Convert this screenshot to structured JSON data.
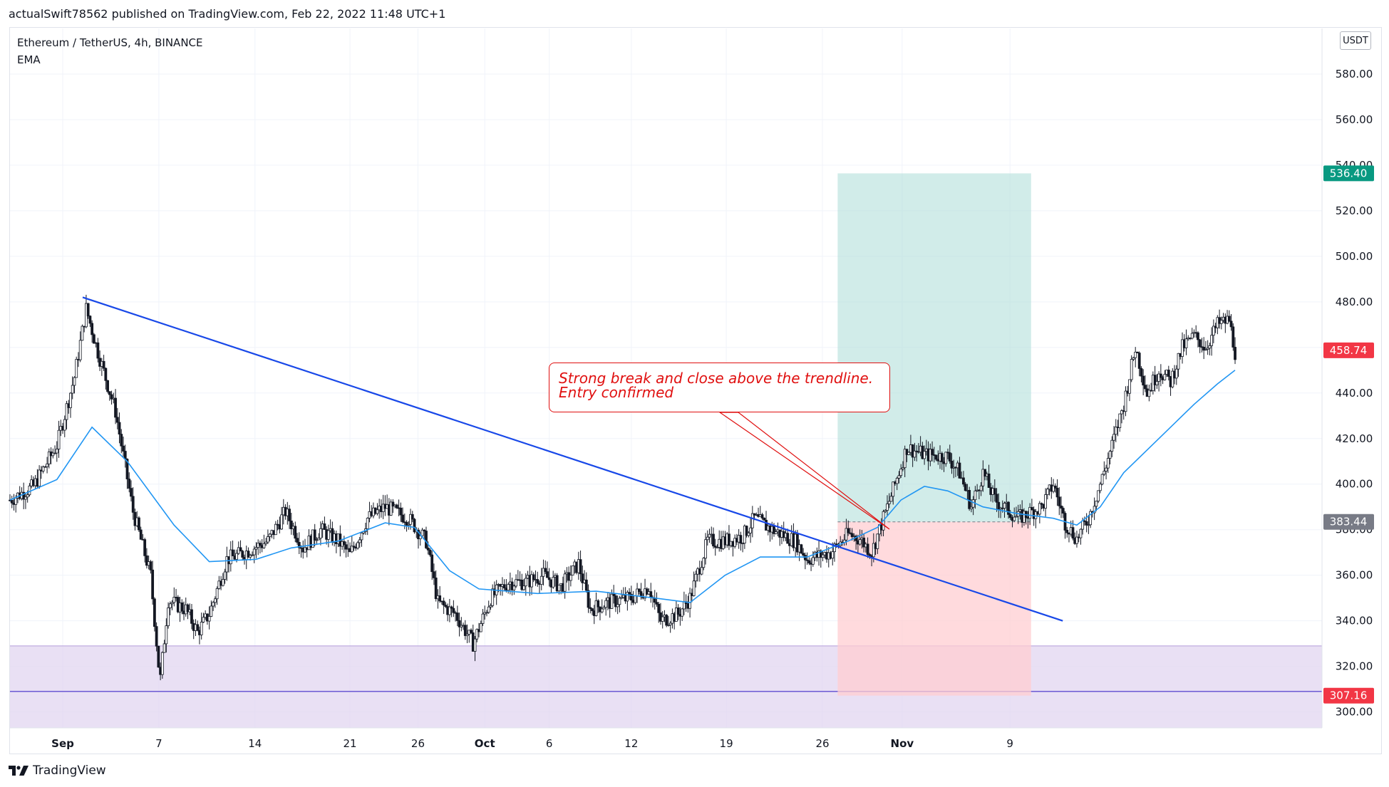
{
  "header": {
    "published_by": "actualSwift78562 published on TradingView.com, Feb 22, 2022 11:48 UTC+1"
  },
  "legend": {
    "symbol": "Ethereum / TetherUS, 4h, BINANCE",
    "indicator": "EMA"
  },
  "currency_button": "USDT",
  "footer": {
    "brand": "TradingView",
    "logo_icon": "tradingview-logo-icon"
  },
  "annotation": {
    "line1": "Strong break and close above the trendline.",
    "line2": "Entry confirmed"
  },
  "colors": {
    "up_candle": "#ffffff",
    "down_candle": "#131722",
    "ema": "#2196f3",
    "trendline": "#1848e8",
    "profit_zone": "#b2dfdb",
    "loss_zone": "#ffcdd2",
    "support_zone": "#e1d5f0",
    "target_label": "#089981",
    "stop_label": "#f23645",
    "entry_label": "#787b86",
    "current_label": "#f23645",
    "annotation": "#e01010"
  },
  "chart_data": {
    "type": "candlestick",
    "symbol": "Ethereum / TetherUS",
    "interval": "4h",
    "exchange": "BINANCE",
    "y_axis": {
      "ticks": [
        "300.00",
        "320.00",
        "340.00",
        "360.00",
        "380.00",
        "400.00",
        "420.00",
        "440.00",
        "460.00",
        "480.00",
        "500.00",
        "520.00",
        "540.00",
        "560.00",
        "580.00"
      ],
      "range": [
        293,
        600
      ],
      "unit": "USDT"
    },
    "x_axis": {
      "ticks": [
        {
          "label": "Sep",
          "bold": true
        },
        {
          "label": "7",
          "bold": false
        },
        {
          "label": "14",
          "bold": false
        },
        {
          "label": "21",
          "bold": false
        },
        {
          "label": "26",
          "bold": false
        },
        {
          "label": "Oct",
          "bold": true
        },
        {
          "label": "6",
          "bold": false
        },
        {
          "label": "12",
          "bold": false
        },
        {
          "label": "19",
          "bold": false
        },
        {
          "label": "26",
          "bold": false
        },
        {
          "label": "Nov",
          "bold": true
        },
        {
          "label": "9",
          "bold": false
        }
      ]
    },
    "price_labels": [
      {
        "name": "target",
        "value": "536.40"
      },
      {
        "name": "current",
        "value": "458.74"
      },
      {
        "name": "entry",
        "value": "383.44"
      },
      {
        "name": "stop",
        "value": "307.16"
      }
    ],
    "position": {
      "entry": 383.44,
      "target": 536.4,
      "stop": 307.16
    },
    "support_zone": {
      "low": 293,
      "high": 329,
      "line": 309
    },
    "ohlc_path": [
      {
        "d": 0,
        "p": 393
      },
      {
        "d": 2,
        "p": 399
      },
      {
        "d": 4,
        "p": 417
      },
      {
        "d": 5.5,
        "p": 447
      },
      {
        "d": 6.5,
        "p": 477
      },
      {
        "d": 7.5,
        "p": 458
      },
      {
        "d": 9,
        "p": 432
      },
      {
        "d": 10.5,
        "p": 388
      },
      {
        "d": 12,
        "p": 360
      },
      {
        "d": 12.8,
        "p": 313
      },
      {
        "d": 13.5,
        "p": 349
      },
      {
        "d": 15,
        "p": 345
      },
      {
        "d": 16,
        "p": 335
      },
      {
        "d": 17,
        "p": 343
      },
      {
        "d": 18.5,
        "p": 367
      },
      {
        "d": 20,
        "p": 370
      },
      {
        "d": 22,
        "p": 375
      },
      {
        "d": 23.5,
        "p": 388
      },
      {
        "d": 25,
        "p": 372
      },
      {
        "d": 26.5,
        "p": 380
      },
      {
        "d": 28,
        "p": 375
      },
      {
        "d": 29,
        "p": 369
      },
      {
        "d": 30.5,
        "p": 385
      },
      {
        "d": 32,
        "p": 390
      },
      {
        "d": 34,
        "p": 385
      },
      {
        "d": 35.5,
        "p": 375
      },
      {
        "d": 36.5,
        "p": 348
      },
      {
        "d": 38,
        "p": 343
      },
      {
        "d": 39.5,
        "p": 330
      },
      {
        "d": 41,
        "p": 350
      },
      {
        "d": 42.5,
        "p": 357
      },
      {
        "d": 44,
        "p": 357
      },
      {
        "d": 45.5,
        "p": 360
      },
      {
        "d": 47,
        "p": 355
      },
      {
        "d": 48.5,
        "p": 365
      },
      {
        "d": 49.5,
        "p": 345
      },
      {
        "d": 51,
        "p": 348
      },
      {
        "d": 53,
        "p": 350
      },
      {
        "d": 54.5,
        "p": 355
      },
      {
        "d": 55.5,
        "p": 340
      },
      {
        "d": 57,
        "p": 343
      },
      {
        "d": 58,
        "p": 350
      },
      {
        "d": 59.5,
        "p": 375
      },
      {
        "d": 61,
        "p": 375
      },
      {
        "d": 62.5,
        "p": 377
      },
      {
        "d": 63.5,
        "p": 385
      },
      {
        "d": 65,
        "p": 380
      },
      {
        "d": 67,
        "p": 375
      },
      {
        "d": 68,
        "p": 367
      },
      {
        "d": 70,
        "p": 370
      },
      {
        "d": 71.5,
        "p": 378
      },
      {
        "d": 72.5,
        "p": 376
      },
      {
        "d": 73.5,
        "p": 370
      },
      {
        "d": 74.5,
        "p": 385
      },
      {
        "d": 75.5,
        "p": 400
      },
      {
        "d": 76.5,
        "p": 416
      },
      {
        "d": 78,
        "p": 413
      },
      {
        "d": 80,
        "p": 412
      },
      {
        "d": 81,
        "p": 405
      },
      {
        "d": 82,
        "p": 390
      },
      {
        "d": 83,
        "p": 405
      },
      {
        "d": 84,
        "p": 393
      },
      {
        "d": 86,
        "p": 385
      },
      {
        "d": 88,
        "p": 390
      },
      {
        "d": 89,
        "p": 400
      },
      {
        "d": 90,
        "p": 383
      },
      {
        "d": 91,
        "p": 376
      },
      {
        "d": 92,
        "p": 385
      },
      {
        "d": 93,
        "p": 400
      },
      {
        "d": 94,
        "p": 417
      },
      {
        "d": 95,
        "p": 435
      },
      {
        "d": 96,
        "p": 460
      },
      {
        "d": 97,
        "p": 440
      },
      {
        "d": 98,
        "p": 450
      },
      {
        "d": 99,
        "p": 445
      },
      {
        "d": 100,
        "p": 460
      },
      {
        "d": 101,
        "p": 465
      },
      {
        "d": 102,
        "p": 460
      },
      {
        "d": 103,
        "p": 470
      },
      {
        "d": 104,
        "p": 472
      },
      {
        "d": 104.5,
        "p": 458
      }
    ],
    "ema_path": [
      {
        "d": 0,
        "p": 393
      },
      {
        "d": 4,
        "p": 402
      },
      {
        "d": 7,
        "p": 425
      },
      {
        "d": 10,
        "p": 410
      },
      {
        "d": 14,
        "p": 382
      },
      {
        "d": 17,
        "p": 366
      },
      {
        "d": 21,
        "p": 367
      },
      {
        "d": 24,
        "p": 372
      },
      {
        "d": 28,
        "p": 375
      },
      {
        "d": 32,
        "p": 383
      },
      {
        "d": 34.5,
        "p": 381
      },
      {
        "d": 37.5,
        "p": 362
      },
      {
        "d": 40,
        "p": 354
      },
      {
        "d": 45,
        "p": 352
      },
      {
        "d": 50,
        "p": 353
      },
      {
        "d": 55,
        "p": 350
      },
      {
        "d": 58,
        "p": 348
      },
      {
        "d": 61,
        "p": 360
      },
      {
        "d": 64,
        "p": 368
      },
      {
        "d": 68,
        "p": 368
      },
      {
        "d": 71.5,
        "p": 375
      },
      {
        "d": 74,
        "p": 381
      },
      {
        "d": 76,
        "p": 393
      },
      {
        "d": 78,
        "p": 399
      },
      {
        "d": 80,
        "p": 397
      },
      {
        "d": 83,
        "p": 390
      },
      {
        "d": 86,
        "p": 387
      },
      {
        "d": 89,
        "p": 385
      },
      {
        "d": 91,
        "p": 382
      },
      {
        "d": 93,
        "p": 390
      },
      {
        "d": 95,
        "p": 405
      },
      {
        "d": 97,
        "p": 415
      },
      {
        "d": 99,
        "p": 425
      },
      {
        "d": 101,
        "p": 435
      },
      {
        "d": 103,
        "p": 444
      },
      {
        "d": 104.5,
        "p": 450
      }
    ],
    "trendline": {
      "start": {
        "d": 6.2,
        "p": 482
      },
      "end": {
        "d": 89.8,
        "p": 340
      }
    },
    "position_box_days": {
      "start": 70.6,
      "end": 87.1
    }
  }
}
